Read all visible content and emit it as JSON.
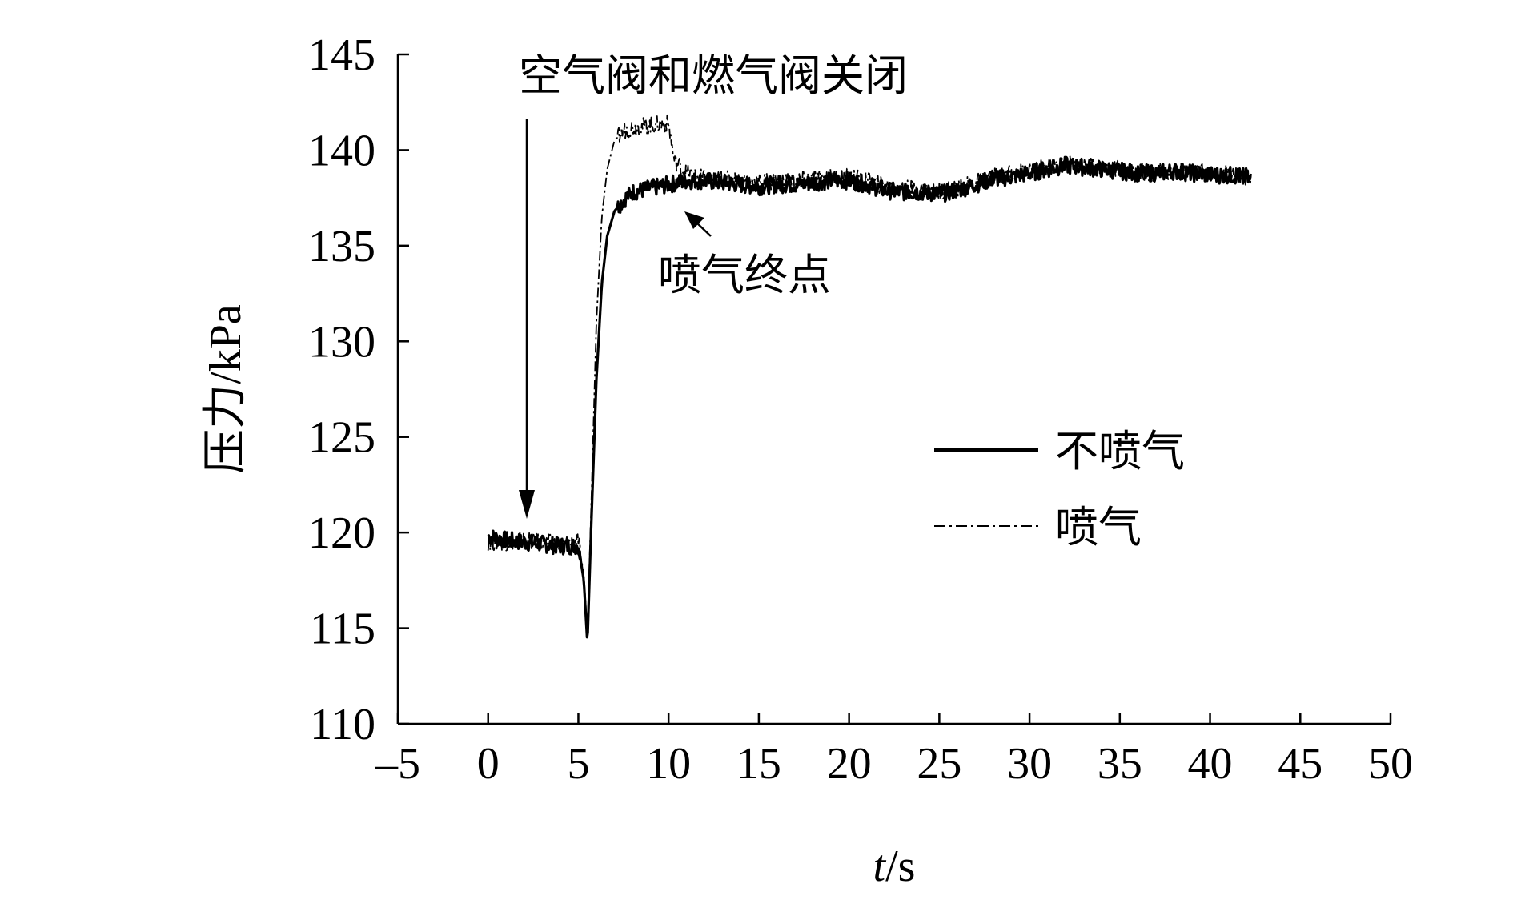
{
  "chart_data": {
    "type": "line",
    "xlabel_italic": "t",
    "xlabel_rest": "/s",
    "ylabel": "压力/kPa",
    "xlim": [
      -5,
      50
    ],
    "ylim": [
      110,
      145
    ],
    "xticks": [
      -5,
      0,
      5,
      10,
      15,
      20,
      25,
      30,
      35,
      40,
      45,
      50
    ],
    "xtick_labels": [
      "–5",
      "0",
      "5",
      "10",
      "15",
      "20",
      "25",
      "30",
      "35",
      "40",
      "45",
      "50"
    ],
    "yticks": [
      110,
      115,
      120,
      125,
      130,
      135,
      140,
      145
    ],
    "grid": false,
    "legend_position": "right-center",
    "series": [
      {
        "name": "不喷气",
        "style": "solid",
        "color": "#000000",
        "x": [
          0,
          1,
          2,
          3,
          4,
          5,
          5.3,
          5.5,
          5.7,
          6,
          6.3,
          6.6,
          7,
          7.5,
          8,
          9,
          10,
          11,
          12,
          13,
          14,
          15,
          16,
          17,
          18,
          19,
          20,
          21,
          22,
          23,
          24,
          25,
          26,
          27,
          28,
          29,
          30,
          31,
          32,
          33,
          34,
          35,
          36,
          37,
          38,
          39,
          40,
          41,
          42,
          42.3
        ],
        "y": [
          119.8,
          119.6,
          119.5,
          119.4,
          119.3,
          119.3,
          117.5,
          114.2,
          120,
          128,
          133,
          135.5,
          136.8,
          137.4,
          137.8,
          138,
          138.2,
          138.4,
          138.4,
          138.3,
          138.2,
          138.1,
          138.2,
          138.2,
          138.3,
          138.4,
          138.4,
          138.2,
          137.9,
          137.8,
          137.8,
          137.7,
          137.9,
          138.2,
          138.5,
          138.6,
          138.8,
          139,
          139.2,
          139.1,
          139,
          138.9,
          138.8,
          138.8,
          138.9,
          138.8,
          138.7,
          138.7,
          138.6,
          138.3
        ]
      },
      {
        "name": "喷气",
        "style": "dashdot",
        "color": "#000000",
        "x": [
          0,
          1,
          2,
          3,
          4,
          5,
          5.3,
          5.5,
          5.7,
          6,
          6.3,
          6.6,
          7,
          7.5,
          8,
          9,
          10,
          10.3,
          11,
          12,
          13,
          14,
          15,
          16,
          17,
          18,
          19,
          20,
          21,
          22,
          23,
          24,
          25,
          26,
          27,
          28,
          29,
          30,
          31,
          32,
          33,
          34,
          35,
          36,
          37,
          38,
          39,
          40,
          41,
          42,
          42.3
        ],
        "y": [
          119.5,
          119.5,
          119.6,
          119.5,
          119.4,
          119.5,
          117.8,
          114.8,
          121,
          131,
          136.5,
          139,
          140.5,
          141,
          141.2,
          141.3,
          141.4,
          139.5,
          138.8,
          138.5,
          138.5,
          138.4,
          138.3,
          138.4,
          138.4,
          138.5,
          138.6,
          138.6,
          138.4,
          138.1,
          138,
          137.9,
          137.9,
          138,
          138.3,
          138.6,
          138.8,
          138.9,
          139.1,
          139.3,
          139.2,
          139.1,
          139,
          138.9,
          138.8,
          138.9,
          138.9,
          138.8,
          138.8,
          138.6,
          138.4
        ]
      }
    ],
    "annotations": [
      {
        "text": "空气阀和燃气阀关闭"
      },
      {
        "text": "喷气终点"
      }
    ]
  }
}
